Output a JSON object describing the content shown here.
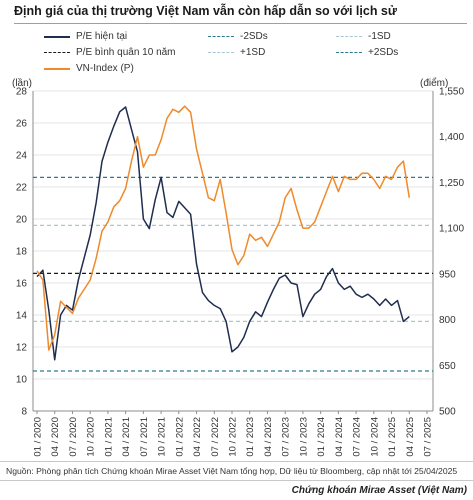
{
  "title": "Định giá của thị trường Việt Nam vẫn còn hấp dẫn so với lịch sử",
  "source": "Nguồn: Phòng phân tích Chứng khoán Mirae Asset Việt Nam tổng hợp,  Dữ liệu từ Bloomberg, cập nhật tới 25/04/2025",
  "footer": "Chứng khoán Mirae Asset (Việt Nam)",
  "colors": {
    "pe": "#1f2d4e",
    "vnindex": "#ef8a2a",
    "avg": "#1a1a1a",
    "sd1": "#a9c7cf",
    "sd2": "#2b7a8f",
    "grid": "#e6e6e6"
  },
  "chart_data": {
    "type": "line",
    "legend": [
      {
        "label": "P/E hiện tại",
        "style": "solid",
        "color": "#1f2d4e"
      },
      {
        "label": "-2SDs",
        "style": "dashed",
        "color": "#2b7a8f"
      },
      {
        "label": "-1SD",
        "style": "dashed",
        "color": "#a9c7cf"
      },
      {
        "label": "P/E bình quân 10 năm",
        "style": "dashed",
        "color": "#1a1a1a"
      },
      {
        "label": "+1SD",
        "style": "dashed",
        "color": "#a9c7cf"
      },
      {
        "label": "+2SDs",
        "style": "dashed",
        "color": "#2b7a8f"
      },
      {
        "label": "VN-Index (P)",
        "style": "solid",
        "color": "#ef8a2a"
      }
    ],
    "left_axis": {
      "unit": "(lần)",
      "min": 8,
      "max": 28,
      "ticks": [
        8,
        10,
        12,
        14,
        16,
        18,
        20,
        22,
        24,
        26,
        28
      ]
    },
    "right_axis": {
      "unit": "(điểm)",
      "min": 500,
      "max": 1550,
      "ticks": [
        500,
        650,
        800,
        950,
        1100,
        1250,
        1400,
        1550
      ]
    },
    "x_axis": {
      "ticks": [
        "01 / 2020",
        "04 / 2020",
        "07 / 2020",
        "10 / 2020",
        "01 / 2021",
        "04 / 2021",
        "07 / 2021",
        "10 / 2021",
        "01 / 2022",
        "04 / 2022",
        "07 / 2022",
        "10 / 2022",
        "01 / 2023",
        "04 / 2023",
        "07 / 2023",
        "10 / 2023",
        "01 / 2024",
        "04 / 2024",
        "07 / 2024",
        "10 / 2024",
        "01 / 2025",
        "04 / 2025",
        "07 / 2025"
      ]
    },
    "reference_lines": {
      "minus_2sd": 10.5,
      "minus_1sd": 13.6,
      "mean_10y": 16.6,
      "plus_1sd": 19.6,
      "plus_2sd": 22.6
    },
    "series": [
      {
        "name": "P/E hiện tại",
        "axis": "left",
        "x": [
          "2020-01",
          "2020-02",
          "2020-03",
          "2020-04",
          "2020-05",
          "2020-06",
          "2020-07",
          "2020-08",
          "2020-09",
          "2020-10",
          "2020-11",
          "2020-12",
          "2021-01",
          "2021-02",
          "2021-03",
          "2021-04",
          "2021-05",
          "2021-06",
          "2021-07",
          "2021-08",
          "2021-09",
          "2021-10",
          "2021-11",
          "2021-12",
          "2022-01",
          "2022-02",
          "2022-03",
          "2022-04",
          "2022-05",
          "2022-06",
          "2022-07",
          "2022-08",
          "2022-09",
          "2022-10",
          "2022-11",
          "2022-12",
          "2023-01",
          "2023-02",
          "2023-03",
          "2023-04",
          "2023-05",
          "2023-06",
          "2023-07",
          "2023-08",
          "2023-09",
          "2023-10",
          "2023-11",
          "2023-12",
          "2024-01",
          "2024-02",
          "2024-03",
          "2024-04",
          "2024-05",
          "2024-06",
          "2024-07",
          "2024-08",
          "2024-09",
          "2024-10",
          "2024-11",
          "2024-12",
          "2025-01",
          "2025-02",
          "2025-03",
          "2025-04"
        ],
        "values": [
          16.4,
          16.8,
          14.3,
          11.2,
          14.0,
          14.6,
          14.3,
          16.2,
          17.6,
          19.0,
          21.0,
          23.6,
          24.8,
          25.8,
          26.7,
          27.0,
          25.6,
          24.2,
          20.0,
          19.4,
          21.2,
          22.6,
          20.4,
          20.1,
          21.1,
          20.7,
          20.3,
          17.2,
          15.4,
          14.9,
          14.6,
          14.4,
          13.6,
          11.7,
          12.0,
          12.6,
          13.6,
          14.2,
          13.9,
          14.8,
          15.6,
          16.3,
          16.5,
          16.0,
          15.9,
          13.9,
          14.7,
          15.3,
          15.6,
          16.4,
          16.9,
          16.0,
          15.6,
          15.8,
          15.3,
          15.1,
          15.3,
          15.0,
          14.6,
          15.0,
          14.6,
          14.9,
          13.6,
          13.9
        ]
      },
      {
        "name": "VN-Index (P)",
        "axis": "right",
        "x": [
          "2020-01",
          "2020-02",
          "2020-03",
          "2020-04",
          "2020-05",
          "2020-06",
          "2020-07",
          "2020-08",
          "2020-09",
          "2020-10",
          "2020-11",
          "2020-12",
          "2021-01",
          "2021-02",
          "2021-03",
          "2021-04",
          "2021-05",
          "2021-06",
          "2021-07",
          "2021-08",
          "2021-09",
          "2021-10",
          "2021-11",
          "2021-12",
          "2022-01",
          "2022-02",
          "2022-03",
          "2022-04",
          "2022-05",
          "2022-06",
          "2022-07",
          "2022-08",
          "2022-09",
          "2022-10",
          "2022-11",
          "2022-12",
          "2023-01",
          "2023-02",
          "2023-03",
          "2023-04",
          "2023-05",
          "2023-06",
          "2023-07",
          "2023-08",
          "2023-09",
          "2023-10",
          "2023-11",
          "2023-12",
          "2024-01",
          "2024-02",
          "2024-03",
          "2024-04",
          "2024-05",
          "2024-06",
          "2024-07",
          "2024-08",
          "2024-09",
          "2024-10",
          "2024-11",
          "2024-12",
          "2025-01",
          "2025-02",
          "2025-03",
          "2025-04"
        ],
        "values": [
          960,
          930,
          700,
          750,
          860,
          840,
          820,
          870,
          900,
          930,
          1000,
          1090,
          1120,
          1170,
          1190,
          1230,
          1320,
          1400,
          1300,
          1340,
          1340,
          1390,
          1460,
          1490,
          1480,
          1500,
          1480,
          1360,
          1280,
          1200,
          1190,
          1260,
          1150,
          1030,
          980,
          1010,
          1080,
          1060,
          1070,
          1040,
          1080,
          1120,
          1200,
          1230,
          1160,
          1100,
          1100,
          1120,
          1170,
          1220,
          1270,
          1220,
          1270,
          1260,
          1260,
          1280,
          1280,
          1260,
          1230,
          1270,
          1260,
          1300,
          1320,
          1200
        ]
      }
    ]
  }
}
